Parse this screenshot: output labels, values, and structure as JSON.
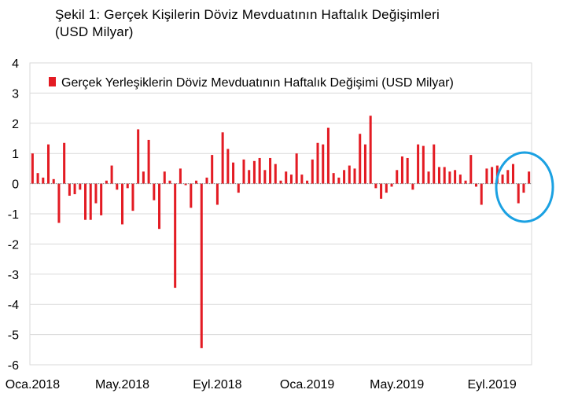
{
  "title_line1": "Şekil 1: Gerçek Kişilerin Döviz Mevduatının Haftalık Değişimleri",
  "title_line2": "(USD Milyar)",
  "colors": {
    "bar": "#e31b23",
    "grid": "#d9d9d9",
    "axis": "#808080",
    "annotation": "#1ba1e2"
  },
  "chart_data": {
    "type": "bar",
    "title": "Şekil 1: Gerçek Kişilerin Döviz Mevduatının Haftalık Değişimleri (USD Milyar)",
    "legend": [
      "Gerçek Yerleşiklerin Döviz Mevduatının Haftalık Değişimi (USD Milyar)"
    ],
    "legend_position": "top",
    "series": [
      {
        "name": "Gerçek Yerleşiklerin Döviz Mevduatının Haftalık Değişimi (USD Milyar)",
        "values": [
          1.0,
          0.35,
          0.2,
          1.3,
          0.15,
          -1.3,
          1.35,
          -0.4,
          -0.35,
          -0.2,
          -1.2,
          -1.2,
          -0.65,
          -1.05,
          0.1,
          0.6,
          -0.2,
          -1.35,
          -0.15,
          -0.9,
          1.8,
          0.4,
          1.45,
          -0.55,
          -1.5,
          0.4,
          0.1,
          -3.45,
          0.5,
          -0.05,
          -0.8,
          0.1,
          -5.45,
          0.2,
          0.95,
          -0.7,
          1.7,
          1.15,
          0.7,
          -0.3,
          0.8,
          0.45,
          0.75,
          0.85,
          0.45,
          0.85,
          0.65,
          0.1,
          0.4,
          0.3,
          1.0,
          0.3,
          0.1,
          0.8,
          1.35,
          1.3,
          1.85,
          0.35,
          0.2,
          0.45,
          0.6,
          0.5,
          1.65,
          1.3,
          2.25,
          -0.15,
          -0.5,
          -0.3,
          -0.1,
          0.45,
          0.9,
          0.85,
          -0.2,
          1.3,
          1.25,
          0.4,
          1.3,
          0.55,
          0.55,
          0.4,
          0.45,
          0.3,
          0.1,
          0.95,
          -0.1,
          -0.7,
          0.5,
          0.55,
          0.6,
          0.3,
          0.45,
          0.65,
          -0.65,
          -0.3,
          0.4
        ]
      }
    ],
    "x_tick_labels": [
      "Oca.2018",
      "May.2018",
      "Eyl.2018",
      "Oca.2019",
      "May.2019",
      "Eyl.2019"
    ],
    "x_tick_indices": [
      0,
      17,
      35,
      52,
      69,
      87
    ],
    "y_ticks": [
      4,
      3,
      2,
      1,
      0,
      -1,
      -2,
      -3,
      -4,
      -5,
      -6
    ],
    "ylim": [
      -6,
      4
    ],
    "grid": true,
    "annotation": "circle highlighting the last weeks"
  }
}
